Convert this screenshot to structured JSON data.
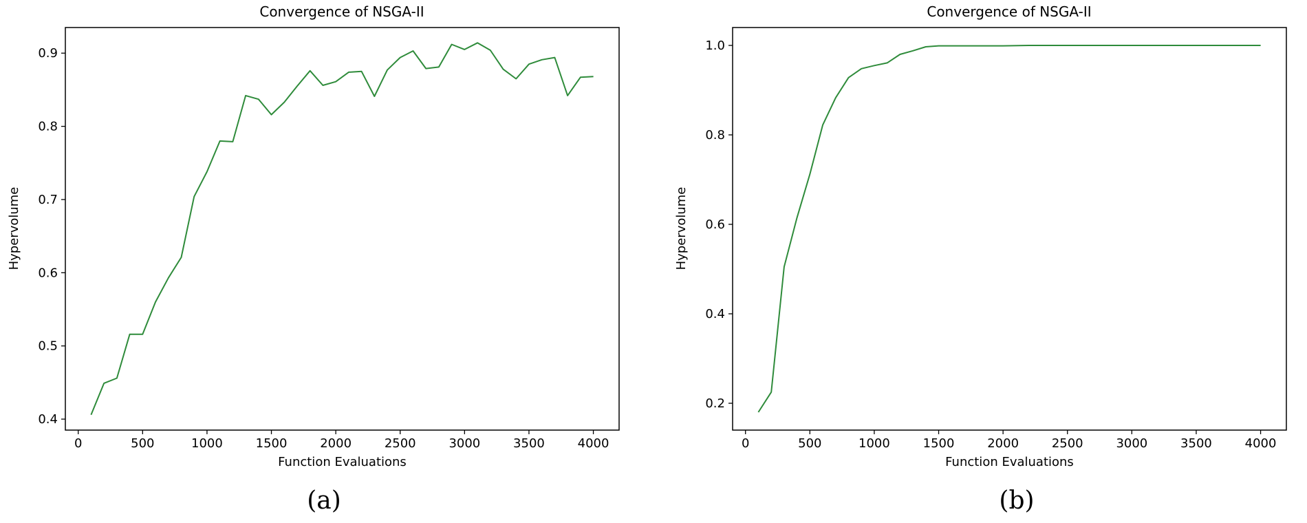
{
  "chart_data": [
    {
      "type": "line",
      "panel_label": "(a)",
      "title": "Convergence of NSGA-II",
      "xlabel": "Function Evaluations",
      "ylabel": "Hypervolume",
      "xlim": [
        -100,
        4200
      ],
      "ylim": [
        0.385,
        0.935
      ],
      "xticks": [
        0,
        500,
        1000,
        1500,
        2000,
        2500,
        3000,
        3500,
        4000
      ],
      "yticks": [
        0.4,
        0.5,
        0.6,
        0.7,
        0.8,
        0.9
      ],
      "ytick_labels": [
        "0.4",
        "0.5",
        "0.6",
        "0.7",
        "0.8",
        "0.9"
      ],
      "grid": false,
      "line_color": "#2e8b3a",
      "x": [
        100,
        200,
        300,
        400,
        500,
        600,
        700,
        800,
        900,
        1000,
        1100,
        1200,
        1300,
        1400,
        1500,
        1600,
        1700,
        1800,
        1900,
        2000,
        2100,
        2200,
        2300,
        2400,
        2500,
        2600,
        2700,
        2800,
        2900,
        3000,
        3100,
        3200,
        3300,
        3400,
        3500,
        3600,
        3700,
        3800,
        3900,
        4000
      ],
      "y": [
        0.406,
        0.449,
        0.456,
        0.516,
        0.516,
        0.56,
        0.593,
        0.621,
        0.704,
        0.738,
        0.78,
        0.779,
        0.842,
        0.837,
        0.816,
        0.833,
        0.855,
        0.876,
        0.856,
        0.861,
        0.874,
        0.875,
        0.841,
        0.877,
        0.894,
        0.903,
        0.879,
        0.881,
        0.912,
        0.905,
        0.914,
        0.904,
        0.878,
        0.865,
        0.885,
        0.891,
        0.894,
        0.842,
        0.867,
        0.868
      ]
    },
    {
      "type": "line",
      "panel_label": "(b)",
      "title": "Convergence of NSGA-II",
      "xlabel": "Function Evaluations",
      "ylabel": "Hypervolume",
      "xlim": [
        -100,
        4200
      ],
      "ylim": [
        0.14,
        1.04
      ],
      "xticks": [
        0,
        500,
        1000,
        1500,
        2000,
        2500,
        3000,
        3500,
        4000
      ],
      "yticks": [
        0.2,
        0.4,
        0.6,
        0.8,
        1.0
      ],
      "ytick_labels": [
        "0.2",
        "0.4",
        "0.6",
        "0.8",
        "1.0"
      ],
      "grid": false,
      "line_color": "#2e8b3a",
      "x": [
        100,
        200,
        300,
        400,
        500,
        600,
        700,
        800,
        900,
        1000,
        1100,
        1200,
        1300,
        1400,
        1500,
        1600,
        1800,
        2000,
        2200,
        2500,
        3000,
        3500,
        4000
      ],
      "y": [
        0.18,
        0.225,
        0.505,
        0.615,
        0.712,
        0.822,
        0.883,
        0.928,
        0.948,
        0.955,
        0.961,
        0.98,
        0.988,
        0.997,
        0.999,
        0.999,
        0.999,
        0.999,
        1.0,
        1.0,
        1.0,
        1.0,
        1.0
      ]
    }
  ]
}
